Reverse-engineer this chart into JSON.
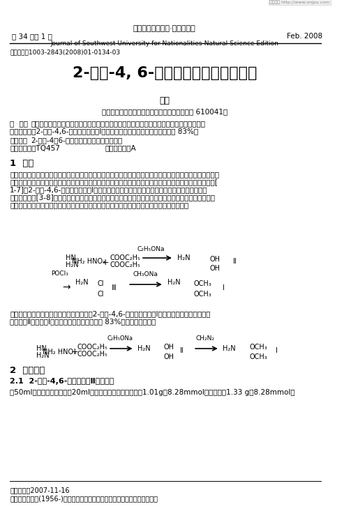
{
  "background_color": "#ffffff",
  "page_width": 5.03,
  "page_height": 7.33,
  "dpi": 100,
  "header": {
    "left": "第 34 基第 1 期",
    "center_line1": "西南民族大学学报·自然科学版",
    "center_line2": "Journal of Southwest University for Nationalities-Natural Science Edition",
    "right": "Feb. 2008",
    "watermark": "相关资讯 http://www.xnjpu.com"
  },
  "article_id": "文章编号：1003-2843(2008)01-0134-03",
  "title": "2-氨基-4, 6-二甲氧基嘧啶新合成方法",
  "author": "廖戊",
  "affiliation": "（西南民族大学化学与环境保护工程学院，成都 610041）",
  "abstract_label": "摘  要：",
  "abstract_text": "本文利用胍酸盐和丙二酸二乙酯为起始原料，经环合及甲氧基化两步反应得到除草剂欲密磺隆的中间体：2-氨基-4,6-二甲氧基嘧啶（Ⅰ），反应条件温和，总产率较高，达到 83%。",
  "keywords_label": "关键词：",
  "keywords_text": "2-氨基-4；6-二甲氧基嘧啶；除草剂；合成",
  "clc_label": "中图分类号：TQ457",
  "doc_id_label": "文献标识码：A",
  "section1_title": "1  前言",
  "para1": "磺酰脲类除草剂如烟嘧磺隆、氯嘧磺隆、玉嘧磺隆、嘧嘧磺隆、苄嘧磺隆等是一类新型、高效、广谱、安全的除草剂。由于这类除草剂具有超高活性和较低毒性，是除草剂中的较佳品种，越来越引起人们的兴趣和关注[1-7]。2-氨基-4,6-二甲氧基嘧啶（Ⅰ）是生产这些磺酰脲类除草剂的通用中间体，其合成方法一般采用三步法[3-8]，即以硝酸胍和丙二酸二乙酯为起始原料，经环合、氯化、水解及甲氧基化而得。该法对反应条件要求较严，需严格控制体系无水以及甲醇钠、三氯氧磷的用量，且总收率不高。",
  "section2_intro": "本文改进了上述合成方法，采用两步法合成2-氨基-4,6-二甲氧基嘧啶（Ⅰ），即利用重氮甲烷作甲基化试剂从Ⅱ直接得到Ⅰ，反应条件温和，总收率为 83%。合成路线如下：",
  "section2_title": "2  实验部分",
  "section2_1_title": "2.1  2-氨基-4,6-二基嘧啶（Ⅱ）的制备",
  "section2_1_text": "在50ml四口反应瓶中，加入20ml无水甲醇，搅拌下依次加入1.01g（8.28mmol）硝酸胍和1.33 g（8.28mmol）",
  "footer_date": "收稿日期：2007-11-16",
  "footer_author": "作者简介：廖戊(1956-)，女，西南民族大学化学与环境保护工程学院教授。"
}
